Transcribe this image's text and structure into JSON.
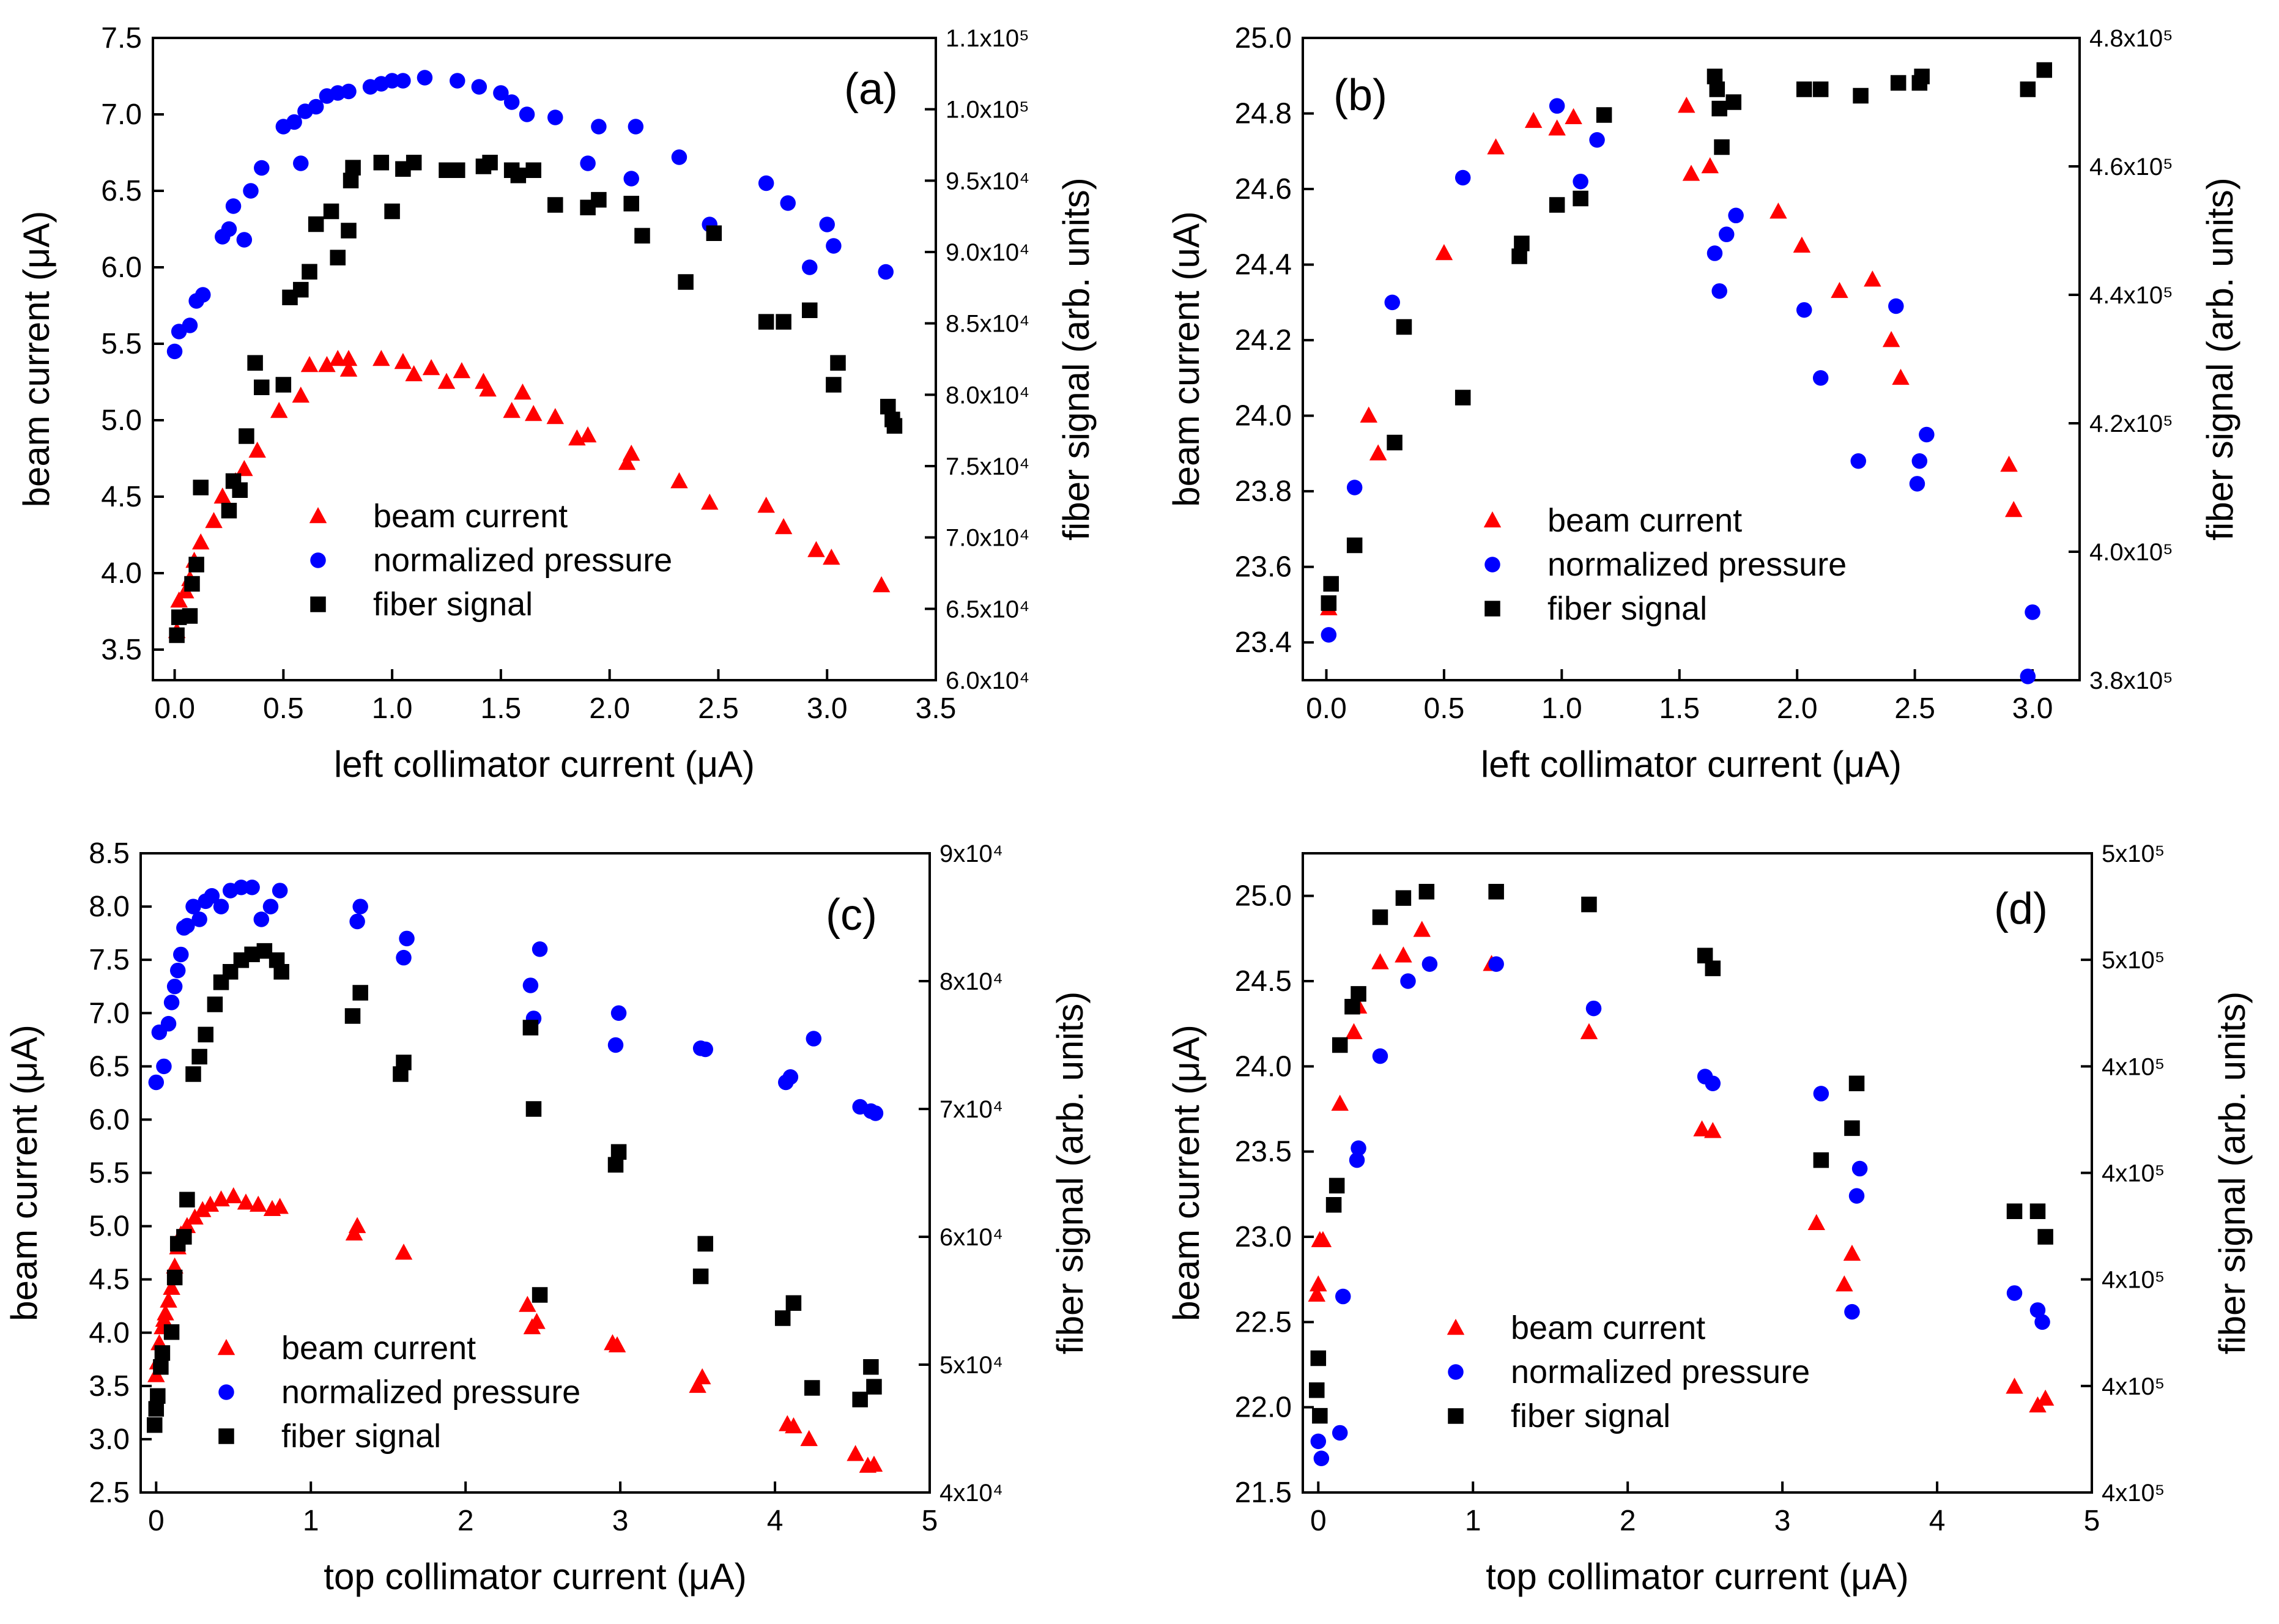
{
  "chart_data": [
    {
      "type": "scatter",
      "panel_label": "(a)",
      "xlabel": "left collimator current (μA)",
      "ylabel": "beam current (μA)",
      "y2label": "fiber signal (arb. units)",
      "xlim": [
        -0.1,
        3.5
      ],
      "ylim": [
        3.3,
        7.5
      ],
      "y2lim": [
        60000,
        110000
      ],
      "xticks": [
        "0.0",
        "0.5",
        "1.0",
        "1.5",
        "2.0",
        "2.5",
        "3.0",
        "3.5"
      ],
      "yticks": [
        "3.5",
        "4.0",
        "4.5",
        "5.0",
        "5.5",
        "6.0",
        "6.5",
        "7.0",
        "7.5"
      ],
      "y2ticks": [
        "6.0x10⁴",
        "6.5x10⁴",
        "7.0x10⁴",
        "7.5x10⁴",
        "8.0x10⁴",
        "8.5x10⁴",
        "9.0x10⁴",
        "9.5x10⁴",
        "1.0x10⁵",
        "1.1x10⁵"
      ],
      "legend_position": "lower-left",
      "series": [
        {
          "name": "beam current",
          "color": "#ff0000",
          "marker": "triangle",
          "axis": "left",
          "x": [
            0.01,
            0.02,
            0.05,
            0.07,
            0.09,
            0.12,
            0.18,
            0.22,
            0.28,
            0.32,
            0.38,
            0.48,
            0.58,
            0.62,
            0.7,
            0.75,
            0.8,
            0.8,
            0.95,
            1.05,
            1.1,
            1.18,
            1.25,
            1.32,
            1.42,
            1.44,
            1.55,
            1.6,
            1.65,
            1.75,
            1.85,
            1.9,
            2.08,
            2.1,
            2.32,
            2.46,
            2.72,
            2.8,
            2.95,
            3.02,
            3.25
          ],
          "y": [
            3.62,
            3.82,
            3.88,
            3.96,
            4.08,
            4.2,
            4.34,
            4.5,
            4.6,
            4.68,
            4.8,
            5.06,
            5.16,
            5.36,
            5.36,
            5.4,
            5.33,
            5.4,
            5.4,
            5.38,
            5.3,
            5.34,
            5.25,
            5.32,
            5.25,
            5.2,
            5.06,
            5.18,
            5.04,
            5.02,
            4.88,
            4.9,
            4.72,
            4.78,
            4.6,
            4.46,
            4.44,
            4.3,
            4.15,
            4.1,
            3.92
          ]
        },
        {
          "name": "normalized pressure",
          "color": "#0000ff",
          "marker": "circle",
          "axis": "left",
          "x": [
            0.0,
            0.02,
            0.07,
            0.1,
            0.13,
            0.22,
            0.25,
            0.27,
            0.32,
            0.35,
            0.4,
            0.5,
            0.55,
            0.58,
            0.6,
            0.65,
            0.7,
            0.75,
            0.8,
            0.9,
            0.95,
            1.0,
            1.05,
            1.15,
            1.3,
            1.4,
            1.5,
            1.55,
            1.62,
            1.75,
            1.9,
            1.95,
            2.1,
            2.12,
            2.32,
            2.46,
            2.72,
            2.82,
            2.92,
            3.0,
            3.03,
            3.27
          ],
          "y": [
            5.45,
            5.58,
            5.62,
            5.78,
            5.82,
            6.2,
            6.25,
            6.4,
            6.18,
            6.5,
            6.65,
            6.92,
            6.95,
            6.68,
            7.02,
            7.05,
            7.12,
            7.14,
            7.15,
            7.18,
            7.2,
            7.22,
            7.22,
            7.24,
            7.22,
            7.18,
            7.14,
            7.08,
            7.0,
            6.98,
            6.68,
            6.92,
            6.58,
            6.92,
            6.72,
            6.28,
            6.55,
            6.42,
            6.0,
            6.28,
            6.14,
            5.97
          ]
        },
        {
          "name": "fiber signal",
          "color": "#000000",
          "marker": "square",
          "axis": "right",
          "x": [
            0.01,
            0.02,
            0.07,
            0.08,
            0.1,
            0.12,
            0.25,
            0.27,
            0.3,
            0.33,
            0.37,
            0.4,
            0.5,
            0.53,
            0.58,
            0.62,
            0.65,
            0.72,
            0.75,
            0.8,
            0.81,
            0.82,
            0.95,
            1.0,
            1.05,
            1.1,
            1.25,
            1.3,
            1.42,
            1.45,
            1.55,
            1.58,
            1.65,
            1.75,
            1.9,
            1.95,
            2.1,
            2.15,
            2.35,
            2.48,
            2.72,
            2.8,
            2.92,
            3.03,
            3.05,
            3.28,
            3.3,
            3.31
          ],
          "y": [
            63500,
            64900,
            65000,
            67500,
            69000,
            75000,
            73200,
            75500,
            74800,
            79000,
            84700,
            82800,
            83000,
            89800,
            90400,
            91800,
            95500,
            96500,
            92900,
            95000,
            98900,
            99900,
            100300,
            96500,
            99800,
            100300,
            99700,
            99700,
            100000,
            100300,
            99700,
            99300,
            99700,
            97000,
            96800,
            97400,
            97100,
            94600,
            91000,
            94800,
            87900,
            87900,
            88800,
            83000,
            84700,
            81300,
            80300,
            79800
          ]
        }
      ]
    },
    {
      "type": "scatter",
      "panel_label": "(b)",
      "xlabel": "left collimator current (μA)",
      "ylabel": "beam current (uA)",
      "y2label": "fiber signal (arb. units)",
      "xlim": [
        -0.1,
        3.2
      ],
      "ylim": [
        23.3,
        25.0
      ],
      "y2lim": [
        380000,
        480000
      ],
      "xticks": [
        "0.0",
        "0.5",
        "1.0",
        "1.5",
        "2.0",
        "2.5",
        "3.0"
      ],
      "yticks": [
        "23.4",
        "23.6",
        "23.8",
        "24.0",
        "24.2",
        "24.4",
        "24.6",
        "24.8",
        "25.0"
      ],
      "y2ticks": [
        "3.8x10⁵",
        "4.0x10⁵",
        "4.2x10⁵",
        "4.4x10⁵",
        "4.6x10⁵",
        "4.8x10⁵"
      ],
      "legend_position": "lower-center",
      "series": [
        {
          "name": "beam current",
          "color": "#ff0000",
          "marker": "triangle",
          "axis": "left",
          "x": [
            0.01,
            0.18,
            0.22,
            0.5,
            0.72,
            0.88,
            0.98,
            1.05,
            1.53,
            1.55,
            1.63,
            1.92,
            2.02,
            2.18,
            2.32,
            2.4,
            2.44,
            2.9,
            2.92
          ],
          "y": [
            23.49,
            24.0,
            23.9,
            24.43,
            24.71,
            24.78,
            24.76,
            24.79,
            24.82,
            24.64,
            24.66,
            24.54,
            24.45,
            24.33,
            24.36,
            24.2,
            24.1,
            23.87,
            23.75
          ]
        },
        {
          "name": "normalized pressure",
          "color": "#0000ff",
          "marker": "circle",
          "axis": "left",
          "x": [
            0.01,
            0.12,
            0.28,
            0.58,
            0.98,
            1.08,
            1.15,
            1.65,
            1.67,
            1.7,
            1.74,
            2.03,
            2.1,
            2.26,
            2.42,
            2.51,
            2.52,
            2.55,
            2.98,
            3.0
          ],
          "y": [
            23.42,
            23.81,
            24.3,
            24.63,
            24.82,
            24.62,
            24.73,
            24.43,
            24.33,
            24.48,
            24.53,
            24.28,
            24.1,
            23.88,
            24.29,
            23.82,
            23.88,
            23.95,
            23.31,
            23.48
          ]
        },
        {
          "name": "fiber signal",
          "color": "#000000",
          "marker": "square",
          "axis": "right",
          "x": [
            0.01,
            0.02,
            0.12,
            0.29,
            0.33,
            0.58,
            0.82,
            0.83,
            0.98,
            1.08,
            1.18,
            1.65,
            1.66,
            1.67,
            1.68,
            1.73,
            2.03,
            2.1,
            2.27,
            2.43,
            2.52,
            2.53,
            2.98,
            3.05
          ],
          "y": [
            392000,
            395000,
            401000,
            417000,
            435000,
            424000,
            446000,
            448000,
            454000,
            455000,
            468000,
            474000,
            472000,
            469000,
            463000,
            470000,
            472000,
            472000,
            471000,
            473000,
            473000,
            474000,
            472000,
            475000
          ]
        }
      ]
    },
    {
      "type": "scatter",
      "panel_label": "(c)",
      "xlabel": "top collimator current (μA)",
      "ylabel": "beam current (μA)",
      "y2label": "fiber signal (arb. units)",
      "xlim": [
        -0.1,
        5
      ],
      "ylim": [
        2.5,
        8.5
      ],
      "y2lim": [
        40000,
        95000
      ],
      "xticks": [
        "0",
        "1",
        "2",
        "3",
        "4",
        "5"
      ],
      "yticks": [
        "2.5",
        "3.0",
        "3.5",
        "4.0",
        "4.5",
        "5.0",
        "5.5",
        "6.0",
        "6.5",
        "7.0",
        "7.5",
        "8.0",
        "8.5"
      ],
      "y2ticks": [
        "4x10⁴",
        "5x10⁴",
        "6x10⁴",
        "7x10⁴",
        "8x10⁴",
        "9x10⁴"
      ],
      "legend_position": "lower-left",
      "series": [
        {
          "name": "beam current",
          "color": "#ff0000",
          "marker": "triangle",
          "axis": "left",
          "x": [
            0.0,
            0.01,
            0.02,
            0.04,
            0.05,
            0.06,
            0.08,
            0.1,
            0.12,
            0.14,
            0.16,
            0.2,
            0.25,
            0.3,
            0.35,
            0.42,
            0.5,
            0.58,
            0.66,
            0.75,
            0.8,
            1.28,
            1.3,
            1.6,
            2.4,
            2.43,
            2.46,
            2.95,
            2.98,
            3.5,
            3.53,
            4.08,
            4.12,
            4.22,
            4.52,
            4.6,
            4.64
          ],
          "y": [
            3.6,
            3.72,
            3.9,
            4.05,
            4.12,
            4.18,
            4.3,
            4.42,
            4.62,
            4.8,
            4.92,
            5.0,
            5.08,
            5.15,
            5.2,
            5.25,
            5.28,
            5.22,
            5.2,
            5.16,
            5.18,
            4.93,
            5.0,
            4.75,
            4.26,
            4.05,
            4.1,
            3.9,
            3.88,
            3.5,
            3.58,
            3.14,
            3.12,
            3.0,
            2.86,
            2.75,
            2.76
          ]
        },
        {
          "name": "normalized pressure",
          "color": "#0000ff",
          "marker": "circle",
          "axis": "left",
          "x": [
            0.0,
            0.02,
            0.05,
            0.08,
            0.1,
            0.12,
            0.14,
            0.16,
            0.18,
            0.2,
            0.24,
            0.28,
            0.32,
            0.36,
            0.42,
            0.48,
            0.55,
            0.62,
            0.68,
            0.74,
            0.8,
            1.3,
            1.32,
            1.6,
            1.62,
            2.42,
            2.44,
            2.48,
            2.97,
            2.99,
            3.52,
            3.55,
            4.07,
            4.1,
            4.25,
            4.55,
            4.62,
            4.65
          ],
          "y": [
            6.35,
            6.82,
            6.5,
            6.9,
            7.1,
            7.25,
            7.4,
            7.55,
            7.8,
            7.82,
            8.0,
            7.88,
            8.05,
            8.1,
            8.0,
            8.15,
            8.18,
            8.18,
            7.88,
            8.0,
            8.15,
            7.86,
            8.0,
            7.52,
            7.7,
            7.26,
            6.95,
            7.6,
            6.7,
            7.0,
            6.67,
            6.66,
            6.35,
            6.4,
            6.76,
            6.12,
            6.08,
            6.06
          ]
        },
        {
          "name": "fiber signal",
          "color": "#000000",
          "marker": "square",
          "axis": "right",
          "x": [
            -0.01,
            0.0,
            0.01,
            0.03,
            0.04,
            0.1,
            0.12,
            0.14,
            0.18,
            0.2,
            0.24,
            0.28,
            0.32,
            0.38,
            0.42,
            0.48,
            0.55,
            0.62,
            0.7,
            0.78,
            0.81,
            1.27,
            1.32,
            1.58,
            1.6,
            2.42,
            2.44,
            2.48,
            2.97,
            2.99,
            3.52,
            3.55,
            4.05,
            4.12,
            4.24,
            4.55,
            4.62,
            4.64
          ],
          "y": [
            45800,
            47200,
            48300,
            50800,
            52000,
            53800,
            58500,
            61400,
            62000,
            65200,
            76000,
            77500,
            79400,
            82000,
            83900,
            84800,
            85800,
            86300,
            86600,
            85800,
            84800,
            81000,
            83000,
            76000,
            77000,
            80000,
            73000,
            57000,
            68200,
            69300,
            58600,
            61400,
            55000,
            56300,
            49000,
            48000,
            50800,
            49100
          ]
        }
      ]
    },
    {
      "type": "scatter",
      "panel_label": "(d)",
      "xlabel": "top collimator current (μA)",
      "ylabel": "beam current (μA)",
      "y2label": "fiber signal (arb. units)",
      "xlim": [
        -0.1,
        5
      ],
      "ylim": [
        21.5,
        25.25
      ],
      "y2lim": [
        400000,
        500000
      ],
      "xticks": [
        "0",
        "1",
        "2",
        "3",
        "4",
        "5"
      ],
      "yticks": [
        "21.5",
        "22.0",
        "22.5",
        "23.0",
        "23.5",
        "24.0",
        "24.5",
        "25.0"
      ],
      "y2ticks": [
        "4x10⁵",
        "4x10⁵",
        "4x10⁵",
        "4x10⁵",
        "4x10⁵",
        "5x10⁵",
        "5x10⁵"
      ],
      "legend_position": "lower-left",
      "series": [
        {
          "name": "beam current",
          "color": "#ff0000",
          "marker": "triangle",
          "axis": "left",
          "x": [
            -0.01,
            0.0,
            0.01,
            0.03,
            0.14,
            0.23,
            0.26,
            0.4,
            0.55,
            0.67,
            1.12,
            1.75,
            2.48,
            2.55,
            3.22,
            3.4,
            3.45,
            4.5,
            4.65,
            4.7
          ],
          "y": [
            22.66,
            22.72,
            22.98,
            22.98,
            23.78,
            24.2,
            24.35,
            24.61,
            24.65,
            24.8,
            24.6,
            24.2,
            23.63,
            23.62,
            23.08,
            22.72,
            22.9,
            22.12,
            22.01,
            22.05
          ]
        },
        {
          "name": "normalized pressure",
          "color": "#0000ff",
          "marker": "circle",
          "axis": "left",
          "x": [
            0.0,
            0.02,
            0.14,
            0.16,
            0.25,
            0.26,
            0.4,
            0.58,
            0.72,
            1.15,
            1.78,
            2.5,
            2.55,
            3.25,
            3.45,
            3.48,
            3.5,
            4.5,
            4.65,
            4.68
          ],
          "y": [
            21.8,
            21.7,
            21.85,
            22.65,
            23.45,
            23.52,
            24.06,
            24.5,
            24.6,
            24.6,
            24.34,
            23.94,
            23.9,
            23.84,
            22.56,
            23.24,
            23.4,
            22.67,
            22.57,
            22.5
          ]
        },
        {
          "name": "fiber signal",
          "color": "#000000",
          "marker": "square",
          "axis": "right",
          "x": [
            -0.01,
            0.0,
            0.01,
            0.1,
            0.12,
            0.14,
            0.22,
            0.26,
            0.4,
            0.55,
            0.7,
            1.15,
            1.75,
            2.5,
            2.55,
            3.25,
            3.45,
            3.48,
            4.5,
            4.65,
            4.7
          ],
          "y": [
            416000,
            421000,
            412000,
            445000,
            448000,
            470000,
            476000,
            478000,
            490000,
            493000,
            494000,
            494000,
            492000,
            484000,
            482000,
            452000,
            457000,
            464000,
            444000,
            444000,
            440000
          ]
        }
      ]
    }
  ]
}
